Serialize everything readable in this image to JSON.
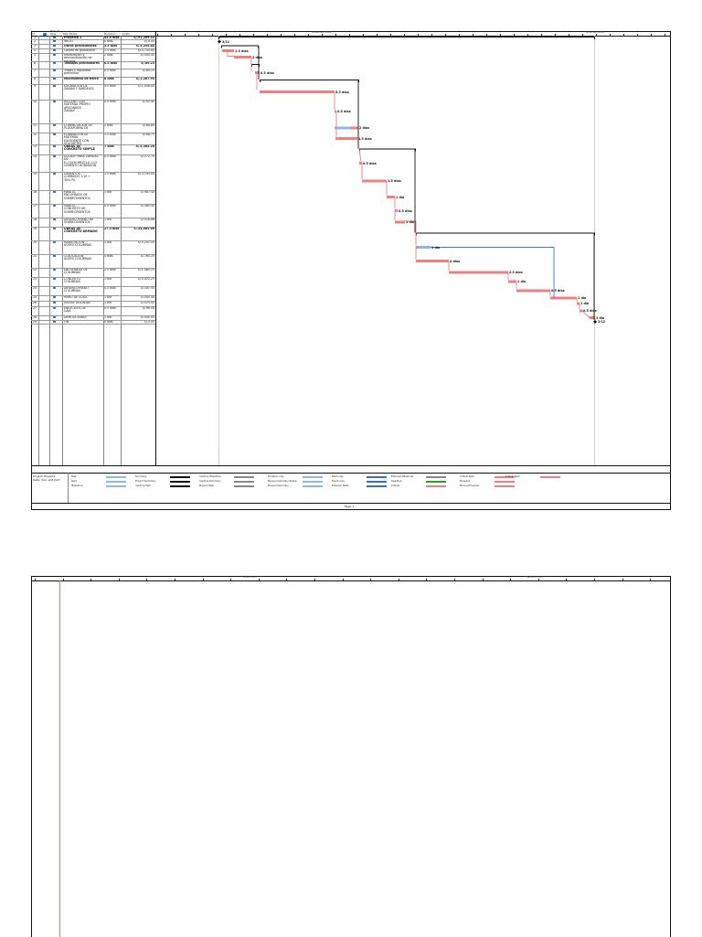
{
  "columns": {
    "id": "Id",
    "mode": "Modo de Tarea",
    "name": "Task Name",
    "duration": "Duración",
    "cost": "Costo"
  },
  "timescale": {
    "major1": [
      "noviembre 2018",
      "diciembre 2018"
    ],
    "major2": [
      "enero 2019",
      "febrero 2019"
    ]
  },
  "tasks": [
    {
      "id": "1",
      "name": "Proyecto 1",
      "duration": "42.5 días",
      "cost": "S/.91,209.52",
      "bold": true
    },
    {
      "id": "2",
      "name": "INICIO",
      "duration": "0 días",
      "cost": "S/.0.00",
      "bold": false
    },
    {
      "id": "3",
      "name": "Obras provisionales",
      "duration": "3.5 días",
      "cost": "S/.5,255.80",
      "bold": true
    },
    {
      "id": "4",
      "name": "Caseta de guardianía",
      "duration": "1.5 días",
      "cost": "S/.4,755.80",
      "bold": false
    },
    {
      "id": "5",
      "name": "Movilización y\ndesmovilización de\nequipos",
      "duration": "2 días",
      "cost": "S/.500.00",
      "bold": false
    },
    {
      "id": "6",
      "name": "Trabajos preliminares",
      "duration": "0.5 días",
      "cost": "S/.89.25",
      "bold": true
    },
    {
      "id": "7",
      "name": "Trazos y replanteo\npreliminar",
      "duration": "0.5 días",
      "cost": "S/.89.25",
      "bold": false
    },
    {
      "id": "8",
      "name": "Movimiento de tierra",
      "duration": "8 días",
      "cost": "S/.1,287.95",
      "bold": true
    },
    {
      "id": "9",
      "name": "EXCAVACIÓN DE\nZANJAS Y SARDELES",
      "duration": "5.5 días",
      "cost": "S/.1,058.00",
      "bold": false
    },
    {
      "id": "10",
      "name": "RELLENO CON\nMATERIAL PROPIO\nAPISONADO\nZANJAS",
      "duration": "0.5 días",
      "cost": "S/.92.40",
      "bold": false
    },
    {
      "id": "11",
      "name": "COMPACTACIÓN DE\nPLATAFORMA DE",
      "duration": "2 días",
      "cost": "S/.68.80",
      "bold": false
    },
    {
      "id": "12",
      "name": "ELIMINACIÓN DE\nMATERIAL\nEXCEDENTE CON\nVOLQUETES",
      "duration": "1.5 días",
      "cost": "S/.68.75",
      "bold": false
    },
    {
      "id": "13",
      "name": "OBRAS DE\nCONCRETO SIMPLE",
      "duration": "7 días",
      "cost": "S/.5,365.26",
      "bold": true
    },
    {
      "id": "14",
      "name": "SOLADO PARA ZAPATAS DE\nE=10CM MEZCLA 1:12\nCEMENTO HORMIGÓN",
      "duration": "0.5 días",
      "cost": "S/.272.75",
      "bold": false
    },
    {
      "id": "15",
      "name": "CIMIENTOS\nCORRIDOS 1:10 +\n30% PG",
      "duration": "1.5 días",
      "cost": "S/.3,195.00",
      "bold": false
    },
    {
      "id": "16",
      "name": "PARA EL\nENCOFRADO DE\nSOBRECIMIENTOS",
      "duration": "1 día",
      "cost": "S/.967.50",
      "bold": false
    },
    {
      "id": "17",
      "name": "PARA EL\nCONCRETO DE\nSOBRECIMIENTOS",
      "duration": "0.5 días",
      "cost": "S/.385.50",
      "bold": false
    },
    {
      "id": "18",
      "name": "DESENCOFRADO DE\nSOBRECIMIENTOS",
      "duration": "1 día",
      "cost": "S/.518.86",
      "bold": false
    },
    {
      "id": "19",
      "name": "OBRAS DE\nCONCRETO ARMADO",
      "duration": "27.5 días",
      "cost": "S/.54,085.86",
      "bold": true
    },
    {
      "id": "20",
      "name": "HABILITACIÓN\nACERO COLUMNAS",
      "duration": "1 día",
      "cost": "S/.5,251.50",
      "bold": false
    },
    {
      "id": "21",
      "name": "COLOCACIÓN\nACERO COLUMNAS",
      "duration": "4 días",
      "cost": "S/.765.25",
      "bold": false
    },
    {
      "id": "22",
      "name": "ENCOFRADO DE\nCOLUMNAS",
      "duration": "2.5 días",
      "cost": "S/.1,085.25",
      "bold": false
    },
    {
      "id": "23",
      "name": "CONCRETO\nCOLUMNAS",
      "duration": "1 día",
      "cost": "S/.5,025.25",
      "bold": false
    },
    {
      "id": "24",
      "name": "DESENCOFRADO\nCOLUMNAS",
      "duration": "0.5 días",
      "cost": "S/.187.50",
      "bold": false
    },
    {
      "id": "25",
      "name": "MURO DE SOGA",
      "duration": "1 día",
      "cost": "S/.500.00",
      "bold": false
    },
    {
      "id": "26",
      "name": "JUNTAS SELLADAS",
      "duration": "1 día",
      "cost": "S/.525.00",
      "bold": false
    },
    {
      "id": "27",
      "name": "ENLUCIDOS DE\nCAJA",
      "duration": "0.5 días",
      "cost": "S/.96.58",
      "bold": false
    },
    {
      "id": "28",
      "name": "DEMOLICIONES",
      "duration": "1 día",
      "cost": "S/.500.00",
      "bold": false
    },
    {
      "id": "29",
      "name": "FIN",
      "duration": "0 días",
      "cost": "S/.0.00",
      "bold": false
    }
  ],
  "bar_labels": {
    "m2": "3/11",
    "t4": "1.5 días",
    "t5": "2 días",
    "t7": "0.5 días",
    "t9": "5.5 días",
    "t10": "0.5 días",
    "t11": "2 días",
    "t12": "1.5 días",
    "t14": "0.5 días",
    "t15": "1.5 días",
    "t16": "1 día",
    "t17": "0.5 días",
    "t18": "1 día",
    "t20": "1 día",
    "t21": "4 días",
    "t22": "2.5 días",
    "t23": "1 día",
    "t24": "0.5 días",
    "t25": "1 día",
    "t26": "1 día",
    "t27": "0.5 días",
    "t28": "1 día",
    "m29": "2/12"
  },
  "footer": {
    "project": "Project: Project1",
    "date": "Date: mar 12/12/23",
    "page": "Page 1"
  },
  "legend": [
    [
      "Task",
      "Summary",
      "Inactive Milestone",
      "Duration-only",
      "Start-only",
      "External Milestone",
      "Critical Split",
      "Critical Split"
    ],
    [
      "Split",
      "Project Summary",
      "Inactive Summary",
      "Manual Summary Rollup",
      "Finish-only",
      "Deadline",
      "Progress",
      ""
    ],
    [
      "Milestone",
      "Inactive Task",
      "Manual Task",
      "Manual Summary",
      "External Tasks",
      "Critical",
      "Manual Progress",
      ""
    ]
  ],
  "colors": {
    "critical": "#f08080",
    "noncritical": "#8fb7e8",
    "blue_link": "#3b78c8",
    "grid_green": "#6cbf5a"
  }
}
